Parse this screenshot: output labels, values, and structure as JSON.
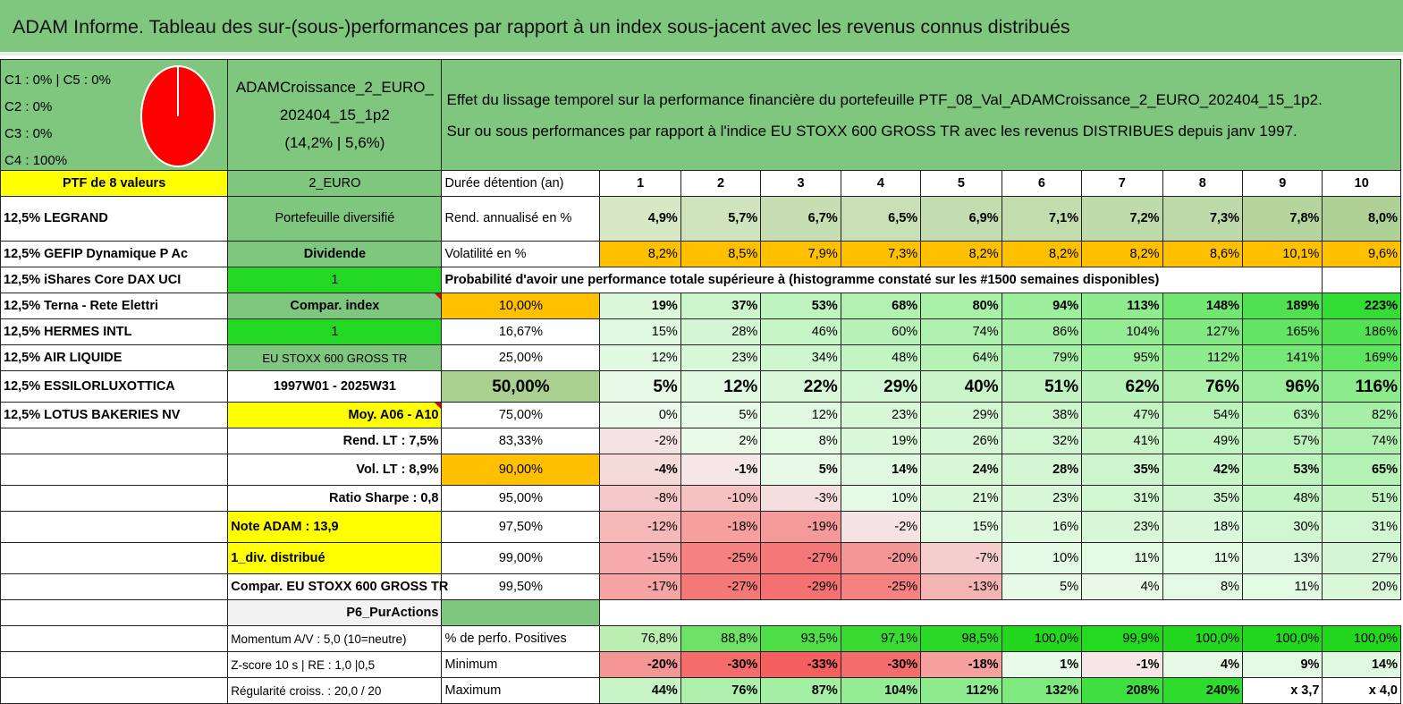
{
  "title": "ADAM Informe. Tableau des sur-(sous-)performances par rapport à un index sous-jacent avec les revenus connus distribués",
  "colors": {
    "green": "#7fc77f",
    "yellow": "#ffff00",
    "orange": "#ffc000",
    "lime": "#22d822",
    "red_text": "#e00000"
  },
  "composition": {
    "lines": [
      "C1 : 0% | C5 : 0%",
      "C2 : 0%",
      "C3 : 0%",
      "C4 : 100%"
    ]
  },
  "fund": {
    "name_line1": "ADAMCroissance_2_EURO_",
    "name_line2": "202404_15_1p2",
    "stats": "(14,2% | 5,6%)"
  },
  "description": {
    "line1": "Effet du lissage temporel sur la performance financière du portefeuille PTF_08_Val_ADAMCroissance_2_EURO_202404_15_1p2.",
    "line2": "Sur ou sous performances par rapport à l'indice EU STOXX 600 GROSS TR avec les revenus DISTRIBUES depuis janv 1997."
  },
  "ptf_header": "PTF de 8 valeurs",
  "currency": "2_EURO",
  "holdings": [
    "12,5% LEGRAND",
    "12,5% GEFIP Dynamique P Ac",
    "12,5% iShares Core DAX UCI",
    "12,5% Terna - Rete Elettri",
    "12,5% HERMES INTL",
    "12,5% AIR LIQUIDE",
    "12,5% ESSILORLUXOTTICA",
    "12,5% LOTUS BAKERIES NV"
  ],
  "side": {
    "portefeuille": "Portefeuille diversifié",
    "dividende": "Dividende",
    "one_a": "1",
    "compar_index": "Compar. index",
    "one_b": "1",
    "index_name": "EU STOXX 600 GROSS TR",
    "period": "1997W01 - 2025W31",
    "moy": "Moy. A06 - A10",
    "rend_lt": "Rend. LT : 7,5%",
    "vol_lt": "Vol. LT : 8,9%",
    "sharpe": "Ratio Sharpe : 0,8",
    "note": "Note ADAM : 13,9",
    "div": "1_div. distribué",
    "compar2": "Compar. EU STOXX 600 GROSS TR",
    "p6": "P6_PurActions",
    "momentum": "Momentum A/V : 5,0 (10=neutre)",
    "zscore": "Z-score 10 s | RE : 1,0 |0,5",
    "regul": "Régularité croiss. : 20,0 / 20"
  },
  "durations_label": "Durée détention (an)",
  "durations": [
    "1",
    "2",
    "3",
    "4",
    "5",
    "6",
    "7",
    "8",
    "9",
    "10"
  ],
  "rend_label": "Rend. annualisé en %",
  "rend": [
    "4,9%",
    "5,7%",
    "6,7%",
    "6,5%",
    "6,9%",
    "7,1%",
    "7,2%",
    "7,3%",
    "7,8%",
    "8,0%"
  ],
  "vol_label": "Volatilité en %",
  "vol": [
    "8,2%",
    "8,5%",
    "7,9%",
    "7,3%",
    "8,2%",
    "8,2%",
    "8,2%",
    "8,6%",
    "10,1%",
    "9,6%"
  ],
  "prob_header": "Probabilité d'avoir une performance totale supérieure à (histogramme constaté sur les #1500 semaines disponibles)",
  "prob_rows": [
    {
      "label": "10,00%",
      "values": [
        "19%",
        "37%",
        "53%",
        "68%",
        "80%",
        "94%",
        "113%",
        "148%",
        "189%",
        "223%"
      ],
      "bold": true
    },
    {
      "label": "16,67%",
      "values": [
        "15%",
        "28%",
        "46%",
        "60%",
        "74%",
        "86%",
        "104%",
        "127%",
        "165%",
        "186%"
      ]
    },
    {
      "label": "25,00%",
      "values": [
        "12%",
        "23%",
        "34%",
        "48%",
        "64%",
        "79%",
        "95%",
        "112%",
        "141%",
        "169%"
      ]
    },
    {
      "label": "50,00%",
      "values": [
        "5%",
        "12%",
        "22%",
        "29%",
        "40%",
        "51%",
        "62%",
        "76%",
        "96%",
        "116%"
      ],
      "big": true
    },
    {
      "label": "75,00%",
      "values": [
        "0%",
        "5%",
        "12%",
        "23%",
        "29%",
        "38%",
        "47%",
        "54%",
        "63%",
        "82%"
      ]
    },
    {
      "label": "83,33%",
      "values": [
        "-2%",
        "2%",
        "8%",
        "19%",
        "26%",
        "32%",
        "41%",
        "49%",
        "57%",
        "74%"
      ]
    },
    {
      "label": "90,00%",
      "values": [
        "-4%",
        "-1%",
        "5%",
        "14%",
        "24%",
        "28%",
        "35%",
        "42%",
        "53%",
        "65%"
      ],
      "bold": true
    },
    {
      "label": "95,00%",
      "values": [
        "-8%",
        "-10%",
        "-3%",
        "10%",
        "21%",
        "23%",
        "31%",
        "35%",
        "48%",
        "51%"
      ]
    },
    {
      "label": "97,50%",
      "values": [
        "-12%",
        "-18%",
        "-19%",
        "-2%",
        "15%",
        "16%",
        "23%",
        "18%",
        "30%",
        "31%"
      ]
    },
    {
      "label": "99,00%",
      "values": [
        "-15%",
        "-25%",
        "-27%",
        "-20%",
        "-7%",
        "10%",
        "11%",
        "11%",
        "13%",
        "27%"
      ]
    },
    {
      "label": "99,50%",
      "values": [
        "-17%",
        "-27%",
        "-29%",
        "-25%",
        "-13%",
        "5%",
        "4%",
        "8%",
        "11%",
        "20%"
      ]
    }
  ],
  "pos_label": "% de perfo. Positives",
  "pos": [
    "76,8%",
    "88,8%",
    "93,5%",
    "97,1%",
    "98,5%",
    "100,0%",
    "99,9%",
    "100,0%",
    "100,0%",
    "100,0%"
  ],
  "min_label": "Minimum",
  "min": [
    "-20%",
    "-30%",
    "-33%",
    "-30%",
    "-18%",
    "1%",
    "-1%",
    "4%",
    "9%",
    "14%"
  ],
  "max_label": "Maximum",
  "max": [
    "44%",
    "76%",
    "87%",
    "104%",
    "112%",
    "132%",
    "208%",
    "240%",
    "x 3,7",
    "x 4,0"
  ]
}
